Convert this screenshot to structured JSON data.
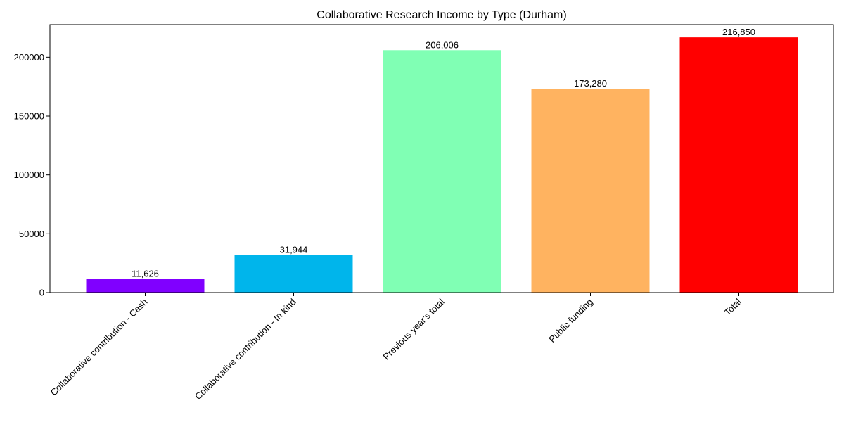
{
  "chart_data": {
    "type": "bar",
    "title": "Collaborative Research Income by Type (Durham)",
    "xlabel": "",
    "ylabel": "",
    "categories": [
      "Collaborative contribution - Cash",
      "Collaborative contribution - In kind",
      "Previous year's total",
      "Public funding",
      "Total"
    ],
    "values": [
      11626,
      31944,
      206006,
      173280,
      216850
    ],
    "data_labels": [
      "11,626",
      "31,944",
      "206,006",
      "173,280",
      "216,850"
    ],
    "colors": [
      "#8000ff",
      "#00b5eb",
      "#80ffb4",
      "#ffb360",
      "#ff0000"
    ],
    "ylim": [
      0,
      227692
    ],
    "yticks": [
      0,
      50000,
      100000,
      150000,
      200000
    ],
    "ytick_labels": [
      "0",
      "50000",
      "100000",
      "150000",
      "200000"
    ],
    "grid": false,
    "legend": "none"
  }
}
